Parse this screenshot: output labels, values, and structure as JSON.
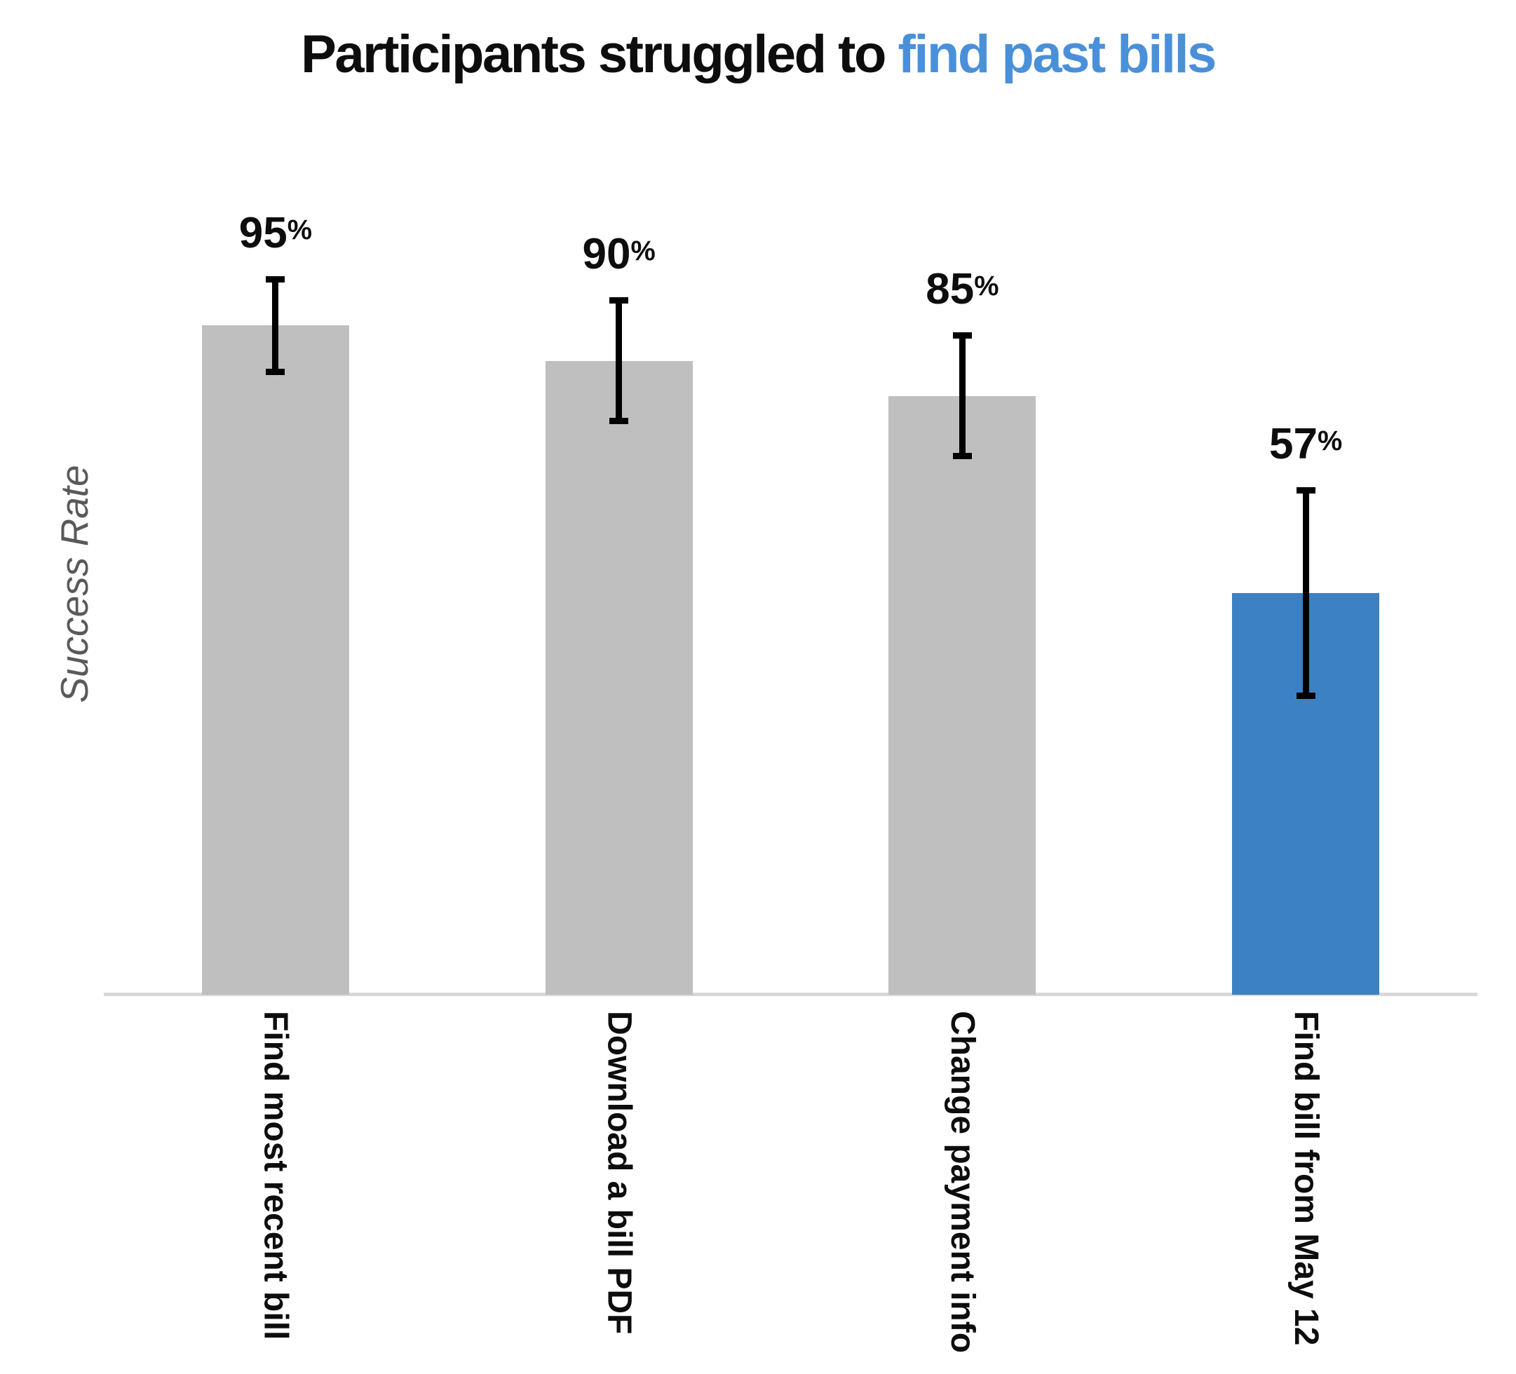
{
  "title": {
    "prefix": "Participants struggled to ",
    "highlight": "find past bills"
  },
  "y_axis": {
    "label": "Success Rate"
  },
  "colors": {
    "bar_default": "#bfbfbf",
    "bar_highlight": "#3b81c4",
    "title_highlight": "#4a90d9",
    "axis_line": "#d8d8d8",
    "y_label_text": "#595959",
    "error_bar": "#000000",
    "text": "#0d0d0d",
    "background": "#ffffff"
  },
  "chart_data": {
    "type": "bar",
    "title": "Participants struggled to find past bills",
    "title_highlight_text": "find past bills",
    "ylabel": "Success Rate",
    "categories": [
      "Find most recent bill",
      "Download a bill PDF",
      "Change payment info",
      "Find bill from May 12"
    ],
    "values": [
      95,
      90,
      85,
      57
    ],
    "value_labels": [
      "95%",
      "90%",
      "85%",
      "57%"
    ],
    "error_high": [
      102,
      99,
      94,
      72
    ],
    "error_low": [
      88,
      81,
      76,
      42
    ],
    "highlight_index": 3,
    "ylim": [
      0,
      100
    ],
    "grid": false,
    "legend": false,
    "y_tick_labels": [],
    "bar_label_position": "above_error_bar",
    "x_tick_rotation": 90
  }
}
